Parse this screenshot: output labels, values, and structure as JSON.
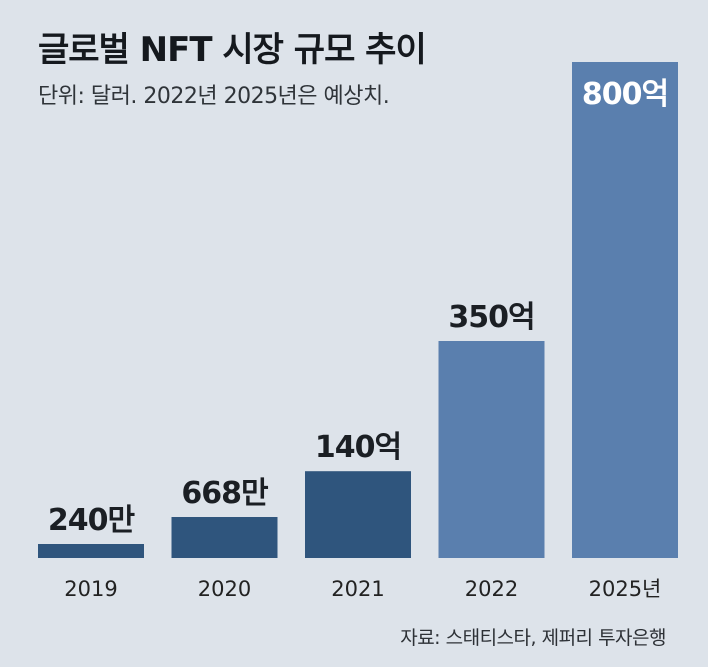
{
  "header": {
    "title": "글로벌 NFT 시장 규모 추이",
    "subtitle": "단위: 달러. 2022년 2025년은 예상치."
  },
  "footer": {
    "source": "자료: 스태티스타, 제퍼리 투자은행"
  },
  "chart_data": {
    "type": "bar",
    "title": "글로벌 NFT 시장 규모 추이",
    "subtitle": "단위: 달러. 2022년 2025년은 예상치.",
    "categories": [
      "2019",
      "2020",
      "2021",
      "2022",
      "2025년"
    ],
    "values": [
      2400000,
      6680000,
      14000000000,
      35000000000,
      80000000000
    ],
    "data_labels": [
      "240만",
      "668만",
      "140억",
      "350억",
      "800억"
    ],
    "xlabel": "",
    "ylabel": "",
    "ylim": [
      0,
      80000000000
    ],
    "grid": false,
    "legend": "none",
    "colors": {
      "actual": "#2f557d",
      "forecast": "#5a7fae",
      "background": "#dde3ea",
      "label_dark": "#1b1f24",
      "label_light": "#ffffff"
    },
    "forecast_categories": [
      "2022",
      "2025년"
    ]
  }
}
